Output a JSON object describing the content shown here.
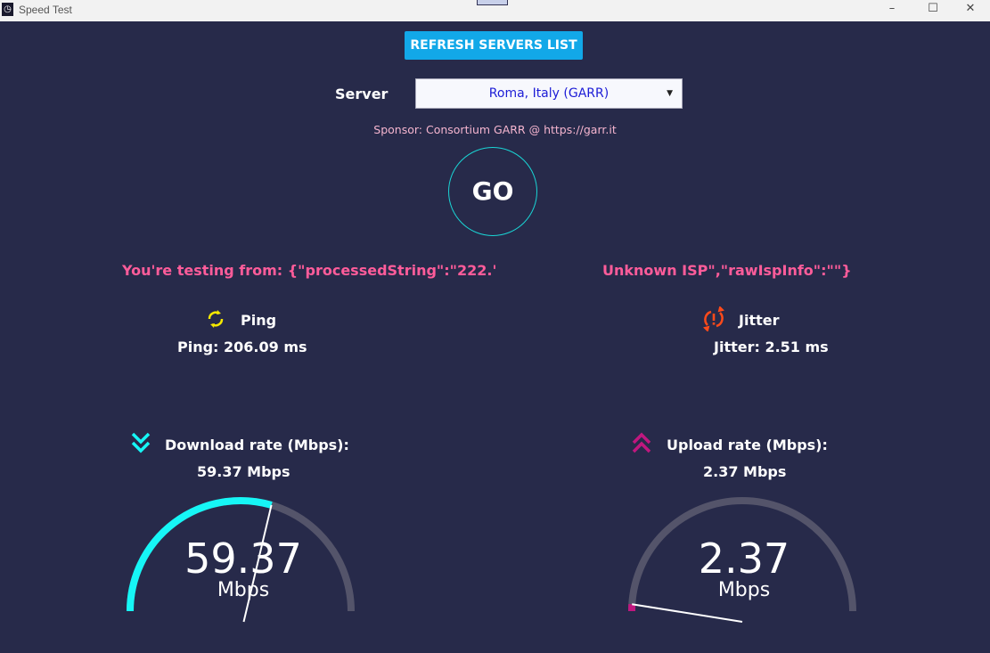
{
  "window": {
    "title": "Speed Test",
    "controls": [
      "–",
      "☐",
      "✕"
    ]
  },
  "refresh_button": "REFRESH SERVERS LIST",
  "server": {
    "label": "Server",
    "selected": "Roma, Italy (GARR)",
    "sponsor": "Sponsor: Consortium GARR @ https://garr.it"
  },
  "go_button": "GO",
  "testing_from": {
    "left": "You're testing from: {\"processedString\":\"222.'",
    "right": "Unknown ISP\",\"rawIspInfo\":\"\"}"
  },
  "ping": {
    "title": "Ping",
    "value": "Ping: 206.09 ms",
    "icon": "sync-icon",
    "color": "#f5e800"
  },
  "jitter": {
    "title": "Jitter",
    "value": "Jitter: 2.51 ms",
    "icon": "sync-alert-icon",
    "color": "#ff4a1a"
  },
  "download": {
    "title": "Download rate (Mbps):",
    "value": "59.37 Mbps",
    "gauge_value": "59.37",
    "unit": "Mbps",
    "fill_fraction": 0.59,
    "color": "#16f6f6",
    "icon": "double-chevron-down-icon"
  },
  "upload": {
    "title": "Upload rate (Mbps):",
    "value": "2.37 Mbps",
    "gauge_value": "2.37",
    "unit": "Mbps",
    "fill_fraction": 0.02,
    "color": "#c0177f",
    "icon": "double-chevron-up-icon"
  },
  "gauge_track_color": "#54546a"
}
